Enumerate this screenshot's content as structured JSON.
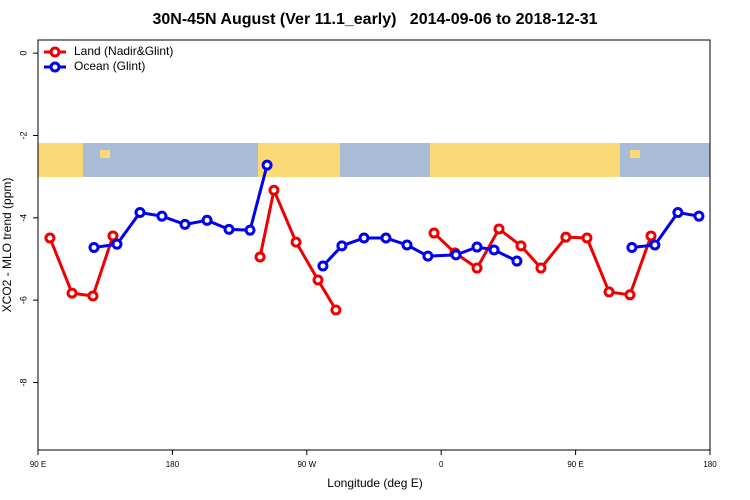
{
  "chart_data": {
    "type": "line",
    "title": "30N-45N August (Ver 11.1_early)   2014-09-06 to 2018-12-31",
    "x_label": "Longitude (deg E)",
    "y_label": "XCO2 - MLO trend (ppm)",
    "xlim": [
      90,
      540
    ],
    "ylim": [
      -9.64,
      0.32
    ],
    "xticks": [
      {
        "value": 90,
        "label": "90 E"
      },
      {
        "value": 180,
        "label": "180"
      },
      {
        "value": 270,
        "label": "90 W"
      },
      {
        "value": 360,
        "label": "0"
      },
      {
        "value": 450,
        "label": "90 E"
      },
      {
        "value": 540,
        "label": "180"
      }
    ],
    "yticks": [
      0,
      -2,
      -4,
      -6,
      -8
    ],
    "legend": "top-left",
    "series": [
      {
        "name": "Land (Nadir&Glint)",
        "color": "#ee0000",
        "x": [
          98,
          112.8,
          126.8,
          140.2,
          null,
          238.7,
          248,
          262.8,
          277.5,
          289.5,
          null,
          355.2,
          369.2,
          384,
          398.7,
          413.4,
          426.8,
          443.5,
          457.6,
          472.4,
          486.4,
          500.5
        ],
        "values": [
          -4.49,
          -5.83,
          -5.9,
          -4.44,
          null,
          -4.95,
          -3.33,
          -4.59,
          -5.51,
          -6.24,
          null,
          -4.37,
          -4.85,
          -5.22,
          -4.27,
          -4.68,
          -5.22,
          -4.47,
          -4.49,
          -5.8,
          -5.87,
          -4.44
        ]
      },
      {
        "name": "Ocean (Glint)",
        "color": "#0000ee",
        "x": [
          127.5,
          142.9,
          158.3,
          173,
          188.4,
          203.2,
          217.9,
          232,
          243.4,
          null,
          280.8,
          293.5,
          308.3,
          323,
          337.1,
          351.1,
          369.9,
          384,
          395.4,
          410.7,
          null,
          487.7,
          503.1,
          518.5,
          532.6
        ],
        "values": [
          -4.72,
          -4.64,
          -3.87,
          -3.96,
          -4.16,
          -4.06,
          -4.28,
          -4.3,
          -2.72,
          null,
          -5.17,
          -4.68,
          -4.49,
          -4.49,
          -4.66,
          -4.93,
          -4.9,
          -4.71,
          -4.78,
          -5.05,
          null,
          -4.72,
          -4.66,
          -3.87,
          -3.96
        ]
      }
    ]
  }
}
